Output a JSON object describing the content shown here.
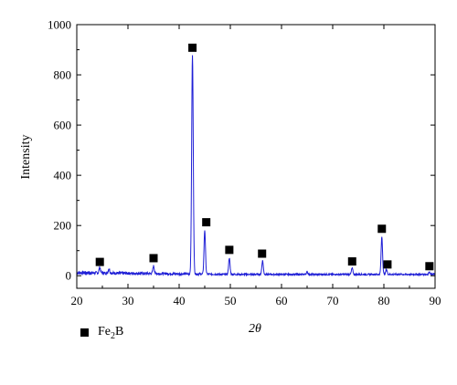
{
  "chart_data": {
    "type": "line",
    "xlabel": "2θ",
    "ylabel": "Intensity",
    "xlim": [
      20,
      90
    ],
    "ylim": [
      -50,
      1000
    ],
    "x_ticks": [
      20,
      30,
      40,
      50,
      60,
      70,
      80,
      90
    ],
    "y_ticks": [
      0,
      200,
      400,
      600,
      800,
      1000
    ],
    "grid": false,
    "line_color": "#1f1fd6",
    "series": [
      {
        "values_note": "",
        "baseline": 12,
        "peaks": [
          {
            "x": 24.5,
            "y": 22
          },
          {
            "x": 26.3,
            "y": 18
          },
          {
            "x": 35.0,
            "y": 30
          },
          {
            "x": 42.6,
            "y": 870
          },
          {
            "x": 45.0,
            "y": 175
          },
          {
            "x": 49.8,
            "y": 65
          },
          {
            "x": 56.3,
            "y": 55
          },
          {
            "x": 65.0,
            "y": 10
          },
          {
            "x": 73.8,
            "y": 25
          },
          {
            "x": 79.6,
            "y": 150
          },
          {
            "x": 80.5,
            "y": 20
          },
          {
            "x": 88.9,
            "y": 10
          }
        ]
      }
    ],
    "markers": [
      {
        "x": 24.5,
        "y": 55
      },
      {
        "x": 35.0,
        "y": 70
      },
      {
        "x": 42.6,
        "y": 908
      },
      {
        "x": 45.3,
        "y": 213
      },
      {
        "x": 49.8,
        "y": 103
      },
      {
        "x": 56.2,
        "y": 88
      },
      {
        "x": 73.8,
        "y": 57
      },
      {
        "x": 79.6,
        "y": 187
      },
      {
        "x": 80.7,
        "y": 45
      },
      {
        "x": 88.9,
        "y": 38
      }
    ],
    "legend": {
      "placement": "bottom-left",
      "entries": [
        {
          "marker": "filled-square",
          "label_main": "Fe",
          "label_sub": "2",
          "label_tail": "B"
        }
      ]
    }
  }
}
